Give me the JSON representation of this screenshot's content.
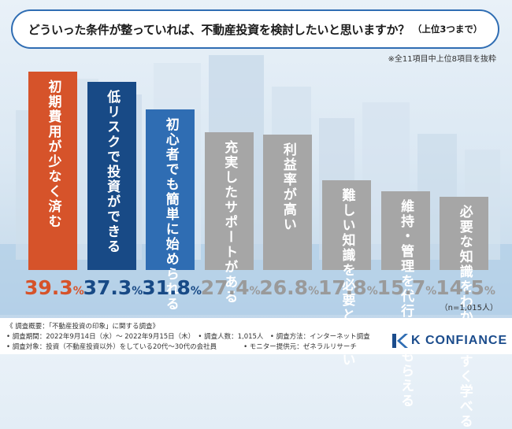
{
  "question": {
    "text": "どういった条件が整っていれば、不動産投資を検討したいと思いますか？",
    "sub": "（上位3つまで）"
  },
  "note_top": "※全11項目中上位8項目を抜粋",
  "n_note": "（n=1,015人）",
  "colors": {
    "first": "#d6532a",
    "second": "#184a86",
    "third": "#2f6db3",
    "rest": "#a6a6a6",
    "frame": "#2f6db3"
  },
  "chart_data": {
    "type": "bar",
    "title": "どういった条件が整っていれば、不動産投資を検討したいと思いますか？（上位3つまで）",
    "unit": "%",
    "ylim": [
      0,
      45
    ],
    "categories": [
      "初期費用が少なく済む",
      "低リスクで投資ができる",
      "初心者でも簡単に始められる",
      "充実したサポートがある",
      "利益率が高い",
      "難しい知識を必要としない",
      "維持・管理を代行してもらえる",
      "必要な知識をわかりやすく学べる"
    ],
    "values": [
      39.3,
      37.3,
      31.8,
      27.4,
      26.8,
      17.8,
      15.7,
      14.5
    ],
    "value_labels": [
      {
        "num": "39.3",
        "unit": "%"
      },
      {
        "num": "37.3",
        "unit": "%"
      },
      {
        "num": "31.8",
        "unit": "%"
      },
      {
        "num": "27.4",
        "unit": "%"
      },
      {
        "num": "26.8",
        "unit": "%"
      },
      {
        "num": "17.8",
        "unit": "%"
      },
      {
        "num": "15.7",
        "unit": "%"
      },
      {
        "num": "14.5",
        "unit": "%"
      }
    ]
  },
  "footer": {
    "line1": "《 調査概要：「不動産投資の印象」に関する調査》",
    "line2": "• 調査期間：2022年9月14日（水）〜 2022年9月15日（木）　• 調査人数：1,015人　• 調査方法：インターネット調査",
    "line3": "• 調査対象：投資（不動産投資以外）をしている20代〜30代の会社員　　　　• モニター提供元：ゼネラルリサーチ"
  },
  "logo": {
    "text": "K CONFIANCE"
  }
}
